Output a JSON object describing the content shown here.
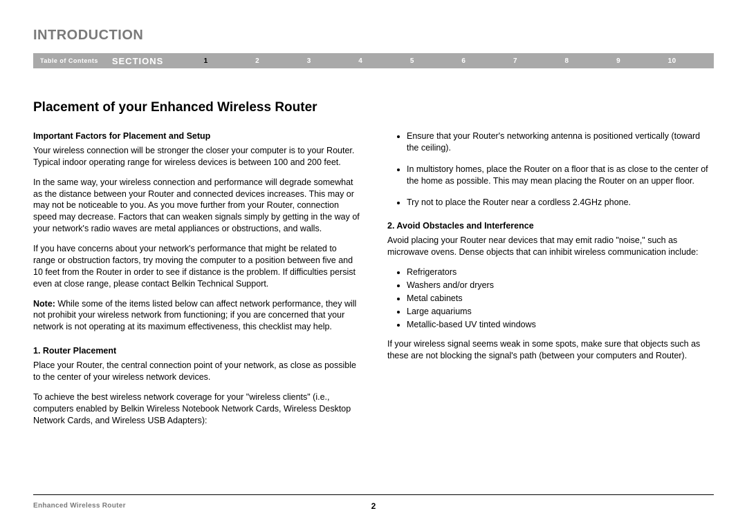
{
  "chapter_title": "INTRODUCTION",
  "navbar": {
    "toc_label": "Table of Contents",
    "sections_label": "SECTIONS",
    "numbers": [
      "1",
      "2",
      "3",
      "4",
      "5",
      "6",
      "7",
      "8",
      "9",
      "10"
    ],
    "active_index": 0
  },
  "main_heading": "Placement of your Enhanced Wireless Router",
  "left_column": {
    "sub1": "Important Factors for Placement and Setup",
    "p1": "Your wireless connection will be stronger the closer your computer is to your Router. Typical indoor operating range for wireless devices is between 100 and 200 feet.",
    "p2": "In the same way, your wireless connection and performance will degrade somewhat as the distance between your Router and connected devices increases. This may or may not be noticeable to you. As you move further from your Router, connection speed may decrease. Factors that can weaken signals simply by getting in the way of your network's radio waves are metal appliances or obstructions, and walls.",
    "p3": "If you have concerns about your network's performance that might be related to range or obstruction factors, try moving the computer to a position between five and 10 feet from the Router in order to see if distance is the problem. If difficulties persist even at close range, please contact Belkin Technical Support.",
    "note_label": "Note:",
    "p4": " While some of the items listed below can affect network performance, they will not prohibit your wireless network from functioning; if you are concerned that your network is not operating at its maximum effectiveness, this checklist may help.",
    "sub2": "1. Router Placement",
    "p5": "Place your Router, the central connection point of your network, as close as possible to the center of your wireless network devices.",
    "p6": "To achieve the best wireless network coverage for your \"wireless clients\" (i.e., computers enabled by Belkin Wireless Notebook Network Cards, Wireless Desktop Network Cards, and Wireless USB Adapters):"
  },
  "right_column": {
    "tips": [
      "Ensure that your Router's networking antenna is positioned vertically (toward the ceiling).",
      "In multistory homes, place the Router on a floor that is as close to the center of the home as possible. This may mean placing the Router on an upper floor.",
      "Try not to place the Router near a cordless 2.4GHz phone."
    ],
    "sub1": "2. Avoid Obstacles and Interference",
    "p1": "Avoid placing your Router near devices that may emit radio \"noise,\" such as microwave ovens. Dense objects that can inhibit wireless communication include:",
    "obstacles": [
      "Refrigerators",
      "Washers and/or dryers",
      "Metal cabinets",
      "Large aquariums",
      "Metallic-based UV tinted windows"
    ],
    "p2": "If your wireless signal seems weak in some spots, make sure that objects such as these are not blocking the signal's path (between your computers and Router)."
  },
  "footer": {
    "left": "Enhanced Wireless Router",
    "page_number": "2"
  }
}
